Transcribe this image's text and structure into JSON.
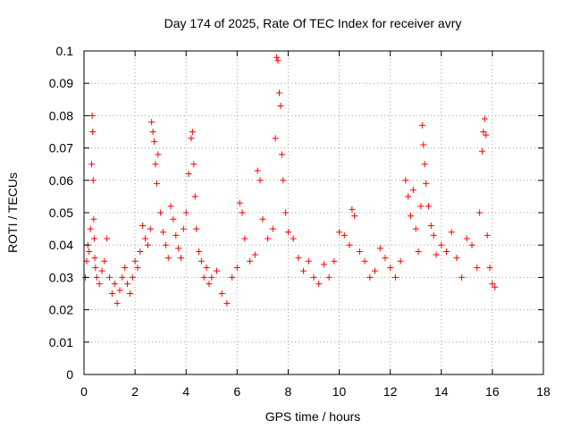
{
  "chart_data": {
    "type": "scatter",
    "title": "Day 174 of 2025, Rate Of TEC Index for receiver avry",
    "xlabel": "GPS time / hours",
    "ylabel": "ROTI / TECUs",
    "xlim": [
      0,
      18
    ],
    "ylim": [
      0,
      0.1
    ],
    "x_ticks": [
      0,
      2,
      4,
      6,
      8,
      10,
      12,
      14,
      16,
      18
    ],
    "y_ticks": [
      0,
      0.01,
      0.02,
      0.03,
      0.04,
      0.05,
      0.06,
      0.07,
      0.08,
      0.09,
      0.1
    ],
    "x_tick_labels": [
      "0",
      "2",
      "4",
      "6",
      "8",
      "10",
      "12",
      "14",
      "16",
      "18"
    ],
    "y_tick_labels": [
      "0",
      "0.01",
      "0.02",
      "0.03",
      "0.04",
      "0.05",
      "0.06",
      "0.07",
      "0.08",
      "0.09",
      "0.1"
    ],
    "grid": true,
    "marker": "+",
    "color": "#ff0000",
    "series": [
      {
        "name": "ROTI",
        "x": [
          0.05,
          0.1,
          0.15,
          0.2,
          0.25,
          0.3,
          0.32,
          0.34,
          0.36,
          0.38,
          0.4,
          0.42,
          0.45,
          0.5,
          0.6,
          0.7,
          0.8,
          0.9,
          1.0,
          1.1,
          1.2,
          1.3,
          1.4,
          1.5,
          1.6,
          1.7,
          1.8,
          1.9,
          2.0,
          2.1,
          2.2,
          2.3,
          2.4,
          2.5,
          2.6,
          2.65,
          2.7,
          2.75,
          2.8,
          2.85,
          2.9,
          3.0,
          3.1,
          3.2,
          3.3,
          3.4,
          3.5,
          3.6,
          3.7,
          3.8,
          3.9,
          4.0,
          4.1,
          4.2,
          4.25,
          4.3,
          4.35,
          4.4,
          4.5,
          4.6,
          4.7,
          4.8,
          4.9,
          5.0,
          5.2,
          5.4,
          5.6,
          5.8,
          6.0,
          6.1,
          6.2,
          6.3,
          6.5,
          6.7,
          6.8,
          6.9,
          7.0,
          7.2,
          7.4,
          7.5,
          7.55,
          7.6,
          7.65,
          7.7,
          7.75,
          7.8,
          7.9,
          8.0,
          8.2,
          8.4,
          8.6,
          8.8,
          9.0,
          9.2,
          9.4,
          9.6,
          9.8,
          10.0,
          10.2,
          10.4,
          10.5,
          10.6,
          10.8,
          11.0,
          11.2,
          11.4,
          11.6,
          11.8,
          12.0,
          12.2,
          12.4,
          12.6,
          12.7,
          12.8,
          12.9,
          13.0,
          13.1,
          13.2,
          13.25,
          13.3,
          13.35,
          13.4,
          13.5,
          13.6,
          13.7,
          13.8,
          14.0,
          14.2,
          14.4,
          14.6,
          14.8,
          15.0,
          15.2,
          15.4,
          15.5,
          15.6,
          15.65,
          15.7,
          15.75,
          15.8,
          15.9,
          16.0,
          16.1
        ],
        "y": [
          0.03,
          0.035,
          0.04,
          0.038,
          0.045,
          0.065,
          0.08,
          0.075,
          0.06,
          0.048,
          0.042,
          0.036,
          0.033,
          0.03,
          0.028,
          0.032,
          0.035,
          0.042,
          0.03,
          0.025,
          0.028,
          0.022,
          0.026,
          0.03,
          0.033,
          0.028,
          0.025,
          0.03,
          0.035,
          0.033,
          0.038,
          0.046,
          0.042,
          0.04,
          0.045,
          0.078,
          0.075,
          0.072,
          0.065,
          0.059,
          0.068,
          0.05,
          0.044,
          0.04,
          0.036,
          0.052,
          0.048,
          0.043,
          0.039,
          0.036,
          0.045,
          0.05,
          0.062,
          0.073,
          0.075,
          0.065,
          0.055,
          0.045,
          0.038,
          0.035,
          0.03,
          0.033,
          0.028,
          0.03,
          0.032,
          0.025,
          0.022,
          0.03,
          0.033,
          0.053,
          0.05,
          0.042,
          0.035,
          0.037,
          0.063,
          0.06,
          0.048,
          0.042,
          0.045,
          0.073,
          0.098,
          0.097,
          0.087,
          0.083,
          0.068,
          0.06,
          0.05,
          0.044,
          0.042,
          0.036,
          0.032,
          0.035,
          0.03,
          0.028,
          0.034,
          0.03,
          0.035,
          0.044,
          0.043,
          0.04,
          0.051,
          0.049,
          0.038,
          0.035,
          0.03,
          0.032,
          0.039,
          0.036,
          0.033,
          0.03,
          0.035,
          0.06,
          0.055,
          0.049,
          0.057,
          0.045,
          0.038,
          0.052,
          0.077,
          0.071,
          0.065,
          0.059,
          0.052,
          0.046,
          0.043,
          0.037,
          0.04,
          0.038,
          0.044,
          0.036,
          0.03,
          0.042,
          0.04,
          0.033,
          0.05,
          0.069,
          0.075,
          0.079,
          0.074,
          0.043,
          0.033,
          0.028,
          0.027
        ]
      }
    ]
  }
}
